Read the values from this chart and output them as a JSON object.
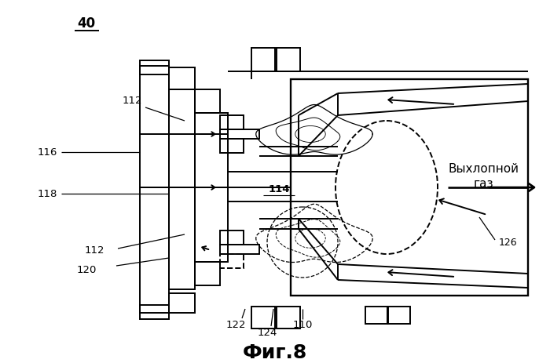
{
  "bg_color": "#ffffff",
  "title": "40",
  "fig_label": "Фиг.8",
  "exhaust_line1": "Выхлопной",
  "exhaust_line2": "газ",
  "lw": 1.4,
  "lw_thin": 0.9
}
